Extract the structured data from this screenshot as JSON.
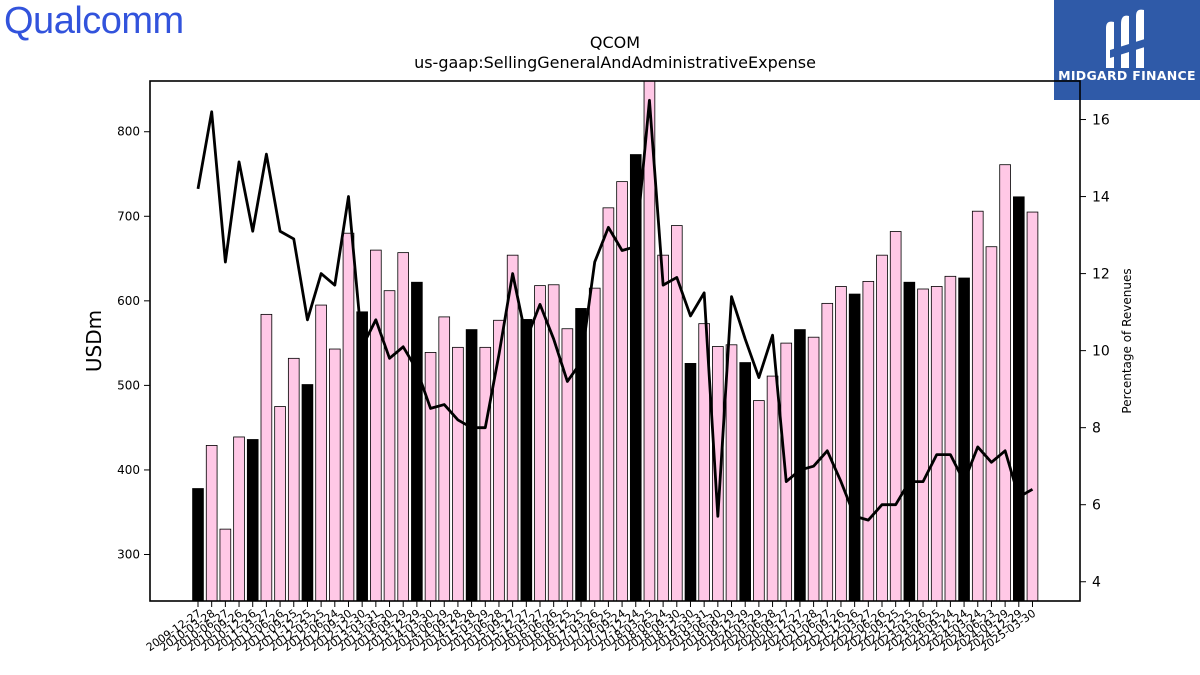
{
  "branding": {
    "left_logo": "Qualcomm",
    "right_logo": "MIDGARD FINANCE"
  },
  "chart_data": {
    "type": "bar",
    "title": "QCOM",
    "subtitle": "us-gaap:SellingGeneralAndAdministrativeExpense",
    "ylabel": "USDm",
    "y2label": "Percentage of Revenues",
    "ylim": [
      245,
      860
    ],
    "y2lim": [
      3.5,
      17.0
    ],
    "yticks": [
      300,
      400,
      500,
      600,
      700,
      800
    ],
    "y2ticks": [
      4,
      6,
      8,
      10,
      12,
      14,
      16
    ],
    "colors": {
      "bar_fill": "#ffc8e6",
      "bar_highlight": "#000000",
      "bar_edge": "#000000",
      "line": "#000000"
    },
    "categories": [
      "2009-12-27",
      "2010-03-28",
      "2010-06-27",
      "2010-09-26",
      "2010-12-26",
      "2011-03-27",
      "2011-06-26",
      "2011-09-25",
      "2011-12-25",
      "2012-03-25",
      "2012-06-24",
      "2012-09-30",
      "2012-12-30",
      "2013-03-31",
      "2013-06-30",
      "2013-09-29",
      "2013-12-29",
      "2014-03-30",
      "2014-06-29",
      "2014-09-28",
      "2014-12-28",
      "2015-03-29",
      "2015-06-28",
      "2015-09-27",
      "2015-12-27",
      "2016-03-27",
      "2016-06-26",
      "2016-09-25",
      "2016-12-25",
      "2017-03-26",
      "2017-06-25",
      "2017-09-24",
      "2017-12-24",
      "2018-03-25",
      "2018-06-24",
      "2018-09-30",
      "2018-12-30",
      "2019-03-31",
      "2019-06-30",
      "2019-09-29",
      "2019-12-29",
      "2020-03-29",
      "2020-06-28",
      "2020-09-27",
      "2020-12-27",
      "2021-03-28",
      "2021-06-27",
      "2021-09-26",
      "2021-12-26",
      "2022-03-27",
      "2022-06-26",
      "2022-09-25",
      "2022-12-25",
      "2023-03-26",
      "2023-06-25",
      "2023-09-24",
      "2023-12-24",
      "2024-03-24",
      "2024-06-23",
      "2024-09-29",
      "2024-12-29",
      "2025-03-30"
    ],
    "x_tick_labels": [
      "2009-12-27",
      "2010-03-28",
      "2010-06-27",
      "2010-09-26",
      "2010-12-26",
      "2011-03-27",
      "2011-06-26",
      "2011-09-25",
      "2011-12-25",
      "2012-03-25",
      "2012-06-24",
      "2012-09-30",
      "2012-12-30",
      "2013-03-31",
      "2013-06-30",
      "2013-09-29",
      "2013-12-29",
      "2014-03-30",
      "2014-06-29",
      "2014-09-28",
      "2014-12-28",
      "2015-03-29",
      "2015-06-28",
      "2015-09-27",
      "2015-12-27",
      "2016-03-27",
      "2016-06-26",
      "2016-09-25",
      "2016-12-25",
      "2017-03-26",
      "2017-06-25",
      "2017-09-24",
      "2017-12-24",
      "2018-03-25",
      "2018-06-24",
      "2018-09-30",
      "2018-12-30",
      "2019-03-31",
      "2019-06-30",
      "2019-09-29",
      "2019-12-29",
      "2020-03-29",
      "2020-06-28",
      "2020-09-27",
      "2020-12-27",
      "2021-03-28",
      "2021-06-27",
      "2021-09-26",
      "2021-12-26",
      "2022-03-27",
      "2022-06-26",
      "2022-09-25",
      "2022-12-25",
      "2023-03-26",
      "2023-06-25",
      "2023-09-24",
      "2023-12-24",
      "2024-03-24",
      "2024-06-23",
      "2024-09-29",
      "2024-12-29",
      "2025-03-30"
    ],
    "series": [
      {
        "type": "bar",
        "values": [
          378,
          429,
          330,
          439,
          436,
          584,
          475,
          532,
          501,
          595,
          543,
          680,
          587,
          660,
          612,
          657,
          622,
          539,
          581,
          545,
          566,
          545,
          577,
          654,
          578,
          618,
          619,
          567,
          591,
          615,
          710,
          741,
          773,
          860,
          654,
          689,
          526,
          573,
          546,
          548,
          527,
          482,
          511,
          550,
          566,
          557,
          597,
          617,
          608,
          623,
          654,
          682,
          622,
          614,
          617,
          629,
          627,
          706,
          664,
          761,
          723,
          705
        ],
        "highlight": [
          true,
          false,
          false,
          false,
          true,
          false,
          false,
          false,
          true,
          false,
          false,
          false,
          true,
          false,
          false,
          false,
          true,
          false,
          false,
          false,
          true,
          false,
          false,
          false,
          true,
          false,
          false,
          false,
          true,
          false,
          false,
          false,
          true,
          false,
          false,
          false,
          true,
          false,
          false,
          false,
          true,
          false,
          false,
          false,
          true,
          false,
          false,
          false,
          true,
          false,
          false,
          false,
          true,
          false,
          false,
          false,
          true,
          false,
          false,
          false,
          true,
          false
        ]
      },
      {
        "type": "line",
        "axis": "right",
        "values": [
          14.2,
          16.2,
          12.3,
          14.9,
          13.1,
          15.1,
          13.1,
          12.9,
          10.8,
          12.0,
          11.7,
          14.0,
          10.1,
          10.8,
          9.8,
          10.1,
          9.5,
          8.5,
          8.6,
          8.2,
          8.0,
          8.0,
          9.9,
          12.0,
          10.3,
          11.2,
          10.3,
          9.2,
          9.7,
          12.3,
          13.2,
          12.6,
          12.7,
          16.5,
          11.7,
          11.9,
          10.9,
          11.5,
          5.7,
          11.4,
          10.3,
          9.3,
          10.4,
          6.6,
          6.9,
          7.0,
          7.4,
          6.6,
          5.7,
          5.6,
          6.0,
          6.0,
          6.6,
          6.6,
          7.3,
          7.3,
          6.6,
          7.5,
          7.1,
          7.4,
          6.2,
          6.4
        ]
      }
    ]
  }
}
